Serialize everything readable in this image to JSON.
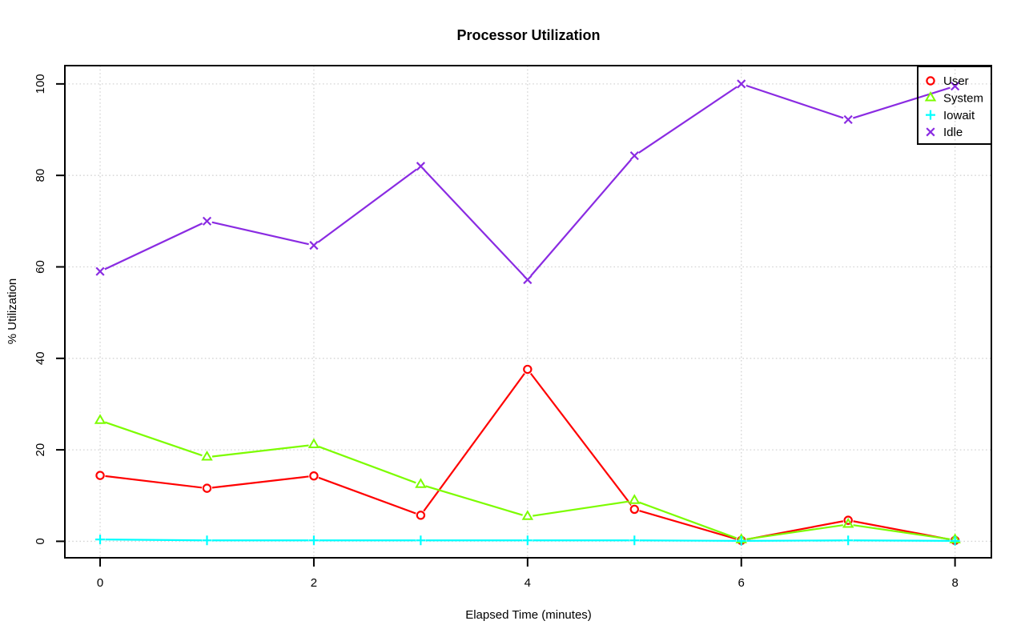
{
  "chart_data": {
    "type": "line",
    "title": "Processor Utilization",
    "xlabel": "Elapsed Time (minutes)",
    "ylabel": "% Utilization",
    "x": [
      0,
      1,
      2,
      3,
      4,
      5,
      6,
      7,
      8
    ],
    "x_ticks": [
      0,
      2,
      4,
      6,
      8
    ],
    "y_ticks": [
      0,
      20,
      40,
      60,
      80,
      100
    ],
    "xlim": [
      0,
      8
    ],
    "ylim": [
      0,
      100
    ],
    "grid": true,
    "grid_color": "#d4d4d4",
    "background": "#ffffff",
    "legend_position": "top-right",
    "legend_border": "#000000",
    "series": [
      {
        "name": "User",
        "color": "#ff0000",
        "marker": "circle",
        "values": [
          14.4,
          11.6,
          14.3,
          5.7,
          37.6,
          7.0,
          0.2,
          4.6,
          0.2
        ]
      },
      {
        "name": "System",
        "color": "#7cfc00",
        "marker": "triangle",
        "values": [
          26.4,
          18.4,
          21.1,
          12.4,
          5.4,
          8.9,
          0.3,
          3.7,
          0.3
        ]
      },
      {
        "name": "Iowait",
        "color": "#00ffff",
        "marker": "plus",
        "values": [
          0.4,
          0.2,
          0.2,
          0.2,
          0.2,
          0.2,
          0.1,
          0.2,
          0.1
        ]
      },
      {
        "name": "Idle",
        "color": "#8a2be2",
        "marker": "x",
        "values": [
          59.0,
          70.0,
          64.7,
          82.0,
          57.2,
          84.3,
          100.0,
          92.2,
          99.5
        ]
      }
    ]
  }
}
